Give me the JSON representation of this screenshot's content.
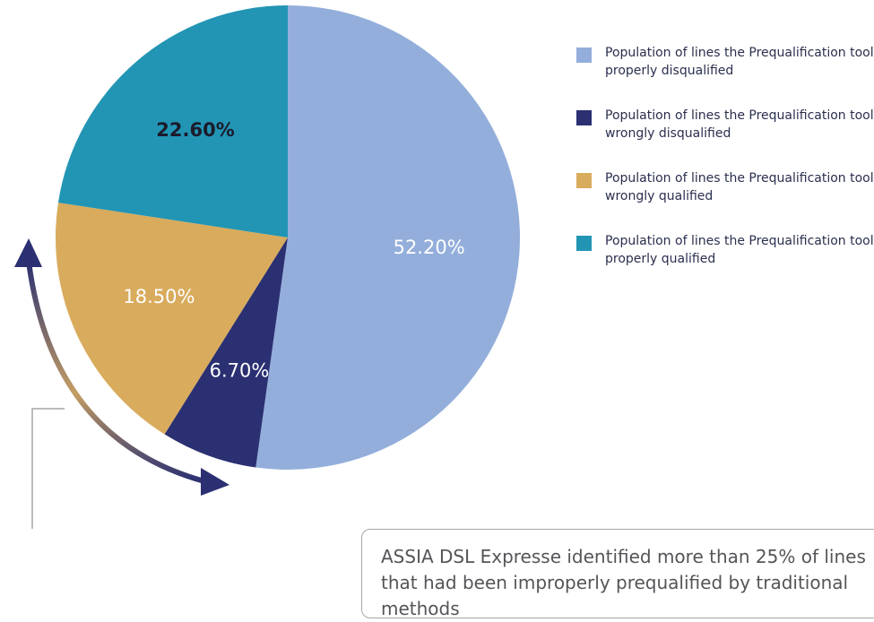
{
  "chart_data": {
    "type": "pie",
    "start_angle": 0,
    "direction": "clockwise",
    "slices": [
      {
        "label": "Population of lines the Prequalification tool properly disqualified",
        "value": 52.2,
        "display": "52.20%",
        "color": "#93aedb",
        "text_color": "#ffffff"
      },
      {
        "label": "Population of lines the Prequalification tool wrongly disqualified",
        "value": 6.7,
        "display": "6.70%",
        "color": "#2b3072",
        "text_color": "#ffffff"
      },
      {
        "label": "Population of lines the Prequalification tool wrongly qualified",
        "value": 18.5,
        "display": "18.50%",
        "color": "#d9ab5d",
        "text_color": "#ffffff"
      },
      {
        "label": "Population of lines the Prequalification tool properly qualified",
        "value": 22.6,
        "display": "22.60%",
        "color": "#2295b4",
        "text_color": "#1b1b2b"
      }
    ],
    "legend_position": "right"
  },
  "callout": {
    "text": "ASSIA DSL Expresse identified more than 25% of lines that had been improperly prequalified by traditional methods"
  },
  "colors": {
    "arrow_start": "#2b3072",
    "arrow_middle": "#c39d63",
    "arrow_end": "#2b3072",
    "connector": "#a6a6a6"
  }
}
